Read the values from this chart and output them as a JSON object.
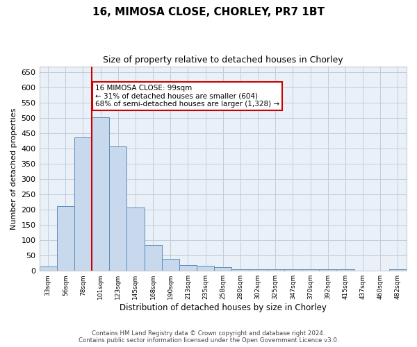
{
  "title_line1": "16, MIMOSA CLOSE, CHORLEY, PR7 1BT",
  "title_line2": "Size of property relative to detached houses in Chorley",
  "xlabel": "Distribution of detached houses by size in Chorley",
  "ylabel": "Number of detached properties",
  "bar_color": "#c8d8ed",
  "bar_edge_color": "#5b8db8",
  "vline_color": "#cc0000",
  "vline_x_idx": 3,
  "annotation_text": "16 MIMOSA CLOSE: 99sqm\n← 31% of detached houses are smaller (604)\n68% of semi-detached houses are larger (1,328) →",
  "annotation_box_color": "#ffffff",
  "annotation_box_edge": "#cc0000",
  "categories": [
    "33sqm",
    "56sqm",
    "78sqm",
    "101sqm",
    "123sqm",
    "145sqm",
    "168sqm",
    "190sqm",
    "213sqm",
    "235sqm",
    "258sqm",
    "280sqm",
    "302sqm",
    "325sqm",
    "347sqm",
    "370sqm",
    "392sqm",
    "415sqm",
    "437sqm",
    "460sqm",
    "482sqm"
  ],
  "values": [
    15,
    213,
    437,
    503,
    407,
    207,
    84,
    40,
    18,
    17,
    11,
    5,
    4,
    4,
    4,
    4,
    4,
    4,
    1,
    1,
    4
  ],
  "ylim": [
    0,
    670
  ],
  "yticks": [
    0,
    50,
    100,
    150,
    200,
    250,
    300,
    350,
    400,
    450,
    500,
    550,
    600,
    650
  ],
  "footer_line1": "Contains HM Land Registry data © Crown copyright and database right 2024.",
  "footer_line2": "Contains public sector information licensed under the Open Government Licence v3.0.",
  "grid_color": "#c0ccdd",
  "bg_color": "#eaf0f8"
}
